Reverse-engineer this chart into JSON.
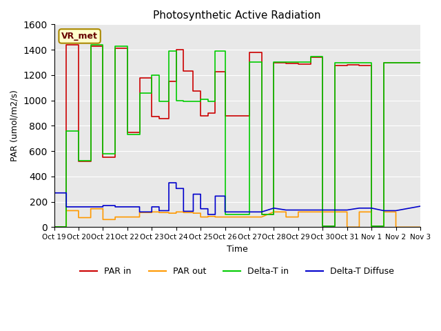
{
  "title": "Photosynthetic Active Radiation",
  "ylabel": "PAR (umol/m2/s)",
  "xlabel": "Time",
  "annotation": "VR_met",
  "background_color": "#e8e8e8",
  "ylim": [
    0,
    1600
  ],
  "yticks": [
    0,
    200,
    400,
    600,
    800,
    1000,
    1200,
    1400,
    1600
  ],
  "xtick_labels": [
    "Oct 19",
    "Oct 20",
    "Oct 21",
    "Oct 22",
    "Oct 23",
    "Oct 24",
    "Oct 25",
    "Oct 26",
    "Oct 27",
    "Oct 28",
    "Oct 29",
    "Oct 30",
    "Oct 31",
    "Nov 1",
    "Nov 2",
    "Nov 3"
  ],
  "legend_labels": [
    "PAR in",
    "PAR out",
    "Delta-T in",
    "Delta-T Diffuse"
  ],
  "legend_colors": [
    "#cc0000",
    "#ff9900",
    "#00cc00",
    "#0000cc"
  ],
  "par_in_x": [
    0.0,
    0.5,
    0.5,
    1.0,
    1.0,
    1.5,
    1.5,
    2.0,
    2.0,
    2.5,
    2.5,
    3.0,
    3.0,
    3.5,
    3.5,
    4.0,
    4.0,
    4.3,
    4.3,
    4.7,
    4.7,
    5.0,
    5.0,
    5.3,
    5.3,
    5.7,
    5.7,
    6.0,
    6.0,
    6.3,
    6.3,
    6.6,
    6.6,
    7.0,
    7.0,
    7.3,
    7.3,
    7.5,
    7.5,
    7.8,
    7.8,
    8.0,
    8.0,
    8.5,
    8.5,
    9.0,
    9.0,
    9.5,
    9.5,
    10.0,
    10.0,
    10.5,
    10.5,
    11.0,
    11.0,
    11.5,
    11.5,
    12.0,
    12.0,
    12.5,
    12.5,
    13.0,
    13.0,
    13.5,
    13.5,
    14.0,
    14.0,
    14.5,
    14.5,
    15.0
  ],
  "par_in_y": [
    0,
    0,
    1440,
    1440,
    520,
    520,
    1430,
    1430,
    550,
    550,
    1410,
    1410,
    750,
    750,
    1175,
    1175,
    870,
    870,
    855,
    855,
    1150,
    1150,
    1400,
    1400,
    1230,
    1230,
    1075,
    1075,
    880,
    880,
    900,
    900,
    1225,
    1225,
    880,
    880,
    880,
    880,
    880,
    880,
    880,
    880,
    1380,
    1380,
    100,
    100,
    1295,
    1295,
    1290,
    1290,
    1285,
    1285,
    1340,
    1340,
    10,
    10,
    1275,
    1275,
    1280,
    1280,
    1275,
    1275,
    10,
    10,
    1295,
    1295,
    1295,
    1295,
    1295,
    1295
  ],
  "par_out_x": [
    0.0,
    0.5,
    0.5,
    1.0,
    1.0,
    1.5,
    1.5,
    2.0,
    2.0,
    2.5,
    2.5,
    3.0,
    3.0,
    3.5,
    3.5,
    4.0,
    4.0,
    4.3,
    4.3,
    4.7,
    4.7,
    5.0,
    5.0,
    5.3,
    5.3,
    5.7,
    5.7,
    6.0,
    6.0,
    6.3,
    6.3,
    6.6,
    6.6,
    7.0,
    7.0,
    7.5,
    7.5,
    8.5,
    8.5,
    9.0,
    9.0,
    9.5,
    9.5,
    10.0,
    10.0,
    10.5,
    10.5,
    11.0,
    11.0,
    11.5,
    11.5,
    12.0,
    12.0,
    12.5,
    12.5,
    13.0,
    13.0,
    13.5,
    13.5,
    14.0,
    14.0,
    15.0
  ],
  "par_out_y": [
    0,
    0,
    130,
    130,
    75,
    75,
    145,
    145,
    60,
    60,
    80,
    80,
    80,
    80,
    115,
    115,
    120,
    120,
    115,
    115,
    110,
    110,
    120,
    120,
    115,
    115,
    110,
    110,
    80,
    80,
    85,
    85,
    80,
    80,
    80,
    80,
    80,
    80,
    80,
    120,
    120,
    120,
    80,
    80,
    120,
    120,
    120,
    120,
    120,
    120,
    120,
    120,
    0,
    0,
    120,
    120,
    0,
    0,
    120,
    120,
    0,
    0
  ],
  "delta_in_x": [
    0.0,
    0.5,
    0.5,
    1.0,
    1.0,
    1.5,
    1.5,
    2.0,
    2.0,
    2.5,
    2.5,
    3.0,
    3.0,
    3.5,
    3.5,
    4.0,
    4.0,
    4.3,
    4.3,
    4.7,
    4.7,
    5.0,
    5.0,
    5.3,
    5.3,
    5.7,
    5.7,
    6.0,
    6.0,
    6.3,
    6.3,
    6.6,
    6.6,
    7.0,
    7.0,
    7.3,
    7.3,
    7.5,
    7.5,
    7.8,
    7.8,
    8.0,
    8.0,
    8.5,
    8.5,
    9.0,
    9.0,
    9.5,
    9.5,
    10.0,
    10.0,
    10.5,
    10.5,
    11.0,
    11.0,
    11.5,
    11.5,
    12.0,
    12.0,
    12.5,
    12.5,
    13.0,
    13.0,
    13.5,
    13.5,
    14.0,
    14.0,
    14.5,
    14.5,
    15.0
  ],
  "delta_in_y": [
    0,
    0,
    760,
    760,
    525,
    525,
    1440,
    1440,
    580,
    580,
    1430,
    1430,
    730,
    730,
    1060,
    1060,
    1200,
    1200,
    990,
    990,
    1390,
    1390,
    1000,
    1000,
    990,
    990,
    990,
    990,
    1010,
    1010,
    990,
    990,
    1390,
    1390,
    100,
    100,
    100,
    100,
    100,
    100,
    100,
    100,
    1300,
    1300,
    100,
    100,
    1300,
    1300,
    1300,
    1300,
    1300,
    1300,
    1345,
    1345,
    10,
    10,
    1295,
    1295,
    1295,
    1295,
    1295,
    1295,
    10,
    10,
    1295,
    1295,
    1295,
    1295,
    1295,
    1295
  ],
  "delta_diff_x": [
    0.0,
    0.5,
    0.5,
    1.0,
    1.0,
    1.5,
    1.5,
    2.0,
    2.0,
    2.5,
    2.5,
    3.0,
    3.0,
    3.5,
    3.5,
    4.0,
    4.0,
    4.3,
    4.3,
    4.7,
    4.7,
    5.0,
    5.0,
    5.3,
    5.3,
    5.7,
    5.7,
    6.0,
    6.0,
    6.3,
    6.3,
    6.6,
    6.6,
    7.0,
    7.0,
    7.5,
    7.5,
    8.5,
    8.5,
    9.0,
    9.0,
    9.5,
    9.5,
    10.0,
    10.0,
    10.5,
    10.5,
    11.0,
    11.0,
    11.5,
    11.5,
    12.0,
    12.0,
    12.5,
    12.5,
    13.0,
    13.0,
    13.5,
    13.5,
    14.0,
    14.0,
    15.0
  ],
  "delta_diff_y": [
    270,
    270,
    160,
    160,
    160,
    160,
    160,
    160,
    170,
    170,
    160,
    160,
    160,
    160,
    120,
    120,
    160,
    160,
    130,
    130,
    350,
    350,
    305,
    305,
    125,
    125,
    260,
    260,
    145,
    145,
    100,
    100,
    245,
    245,
    120,
    120,
    120,
    120,
    120,
    150,
    150,
    135,
    135,
    135,
    135,
    135,
    135,
    135,
    135,
    135,
    135,
    135,
    135,
    150,
    150,
    150,
    150,
    130,
    130,
    130,
    130,
    165
  ]
}
